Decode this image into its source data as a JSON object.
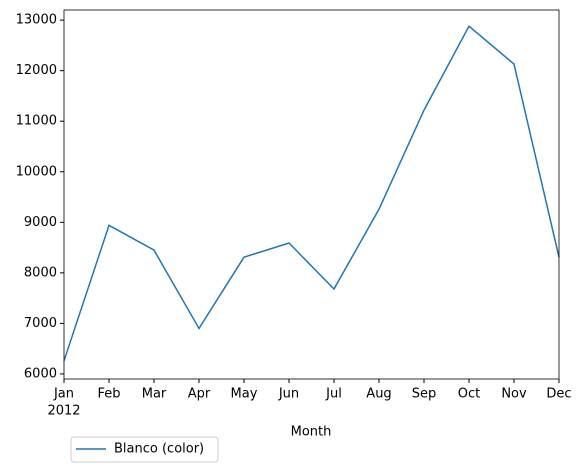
{
  "chart_data": {
    "type": "line",
    "categories": [
      "Jan",
      "Feb",
      "Mar",
      "Apr",
      "May",
      "Jun",
      "Jul",
      "Aug",
      "Sep",
      "Oct",
      "Nov",
      "Dec"
    ],
    "x_year": "2012",
    "xlabel": "Month",
    "series": [
      {
        "name": "Blanco (color)",
        "color": "#1f77b4",
        "values": [
          6260,
          8940,
          8450,
          6900,
          8310,
          8590,
          7680,
          9260,
          11220,
          12880,
          12130,
          8310
        ]
      }
    ],
    "ylim": [
      5900,
      13200
    ],
    "yticks": [
      6000,
      7000,
      8000,
      9000,
      10000,
      11000,
      12000,
      13000
    ],
    "legend": "lower left"
  }
}
